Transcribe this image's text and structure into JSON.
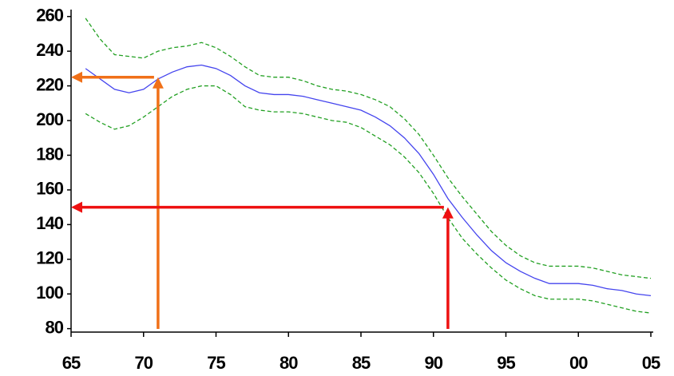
{
  "chart_data": {
    "type": "line",
    "x": [
      1966,
      1967,
      1968,
      1969,
      1970,
      1971,
      1972,
      1973,
      1974,
      1975,
      1976,
      1977,
      1978,
      1979,
      1980,
      1981,
      1982,
      1983,
      1984,
      1985,
      1986,
      1987,
      1988,
      1989,
      1990,
      1991,
      1992,
      1993,
      1994,
      1995,
      1996,
      1997,
      1998,
      1999,
      2000,
      2001,
      2002,
      2003,
      2004,
      2005
    ],
    "series": [
      {
        "color": "#4444ee",
        "dash": false,
        "values": [
          230,
          224,
          218,
          216,
          218,
          224,
          228,
          231,
          232,
          230,
          226,
          220,
          216,
          215,
          215,
          214,
          212,
          210,
          208,
          206,
          202,
          197,
          190,
          181,
          169,
          155,
          144,
          134,
          125,
          118,
          113,
          109,
          106,
          106,
          106,
          105,
          103,
          102,
          100,
          99
        ]
      },
      {
        "color": "#22a022",
        "dash": true,
        "values": [
          259,
          247,
          238,
          237,
          236,
          240,
          242,
          243,
          245,
          242,
          237,
          231,
          226,
          225,
          225,
          223,
          220,
          218,
          217,
          215,
          212,
          208,
          201,
          192,
          180,
          167,
          156,
          146,
          136,
          128,
          122,
          118,
          116,
          116,
          116,
          115,
          113,
          111,
          110,
          109
        ]
      },
      {
        "color": "#22a022",
        "dash": true,
        "values": [
          204,
          199,
          195,
          197,
          202,
          208,
          214,
          218,
          220,
          220,
          215,
          208,
          206,
          205,
          205,
          204,
          202,
          200,
          199,
          196,
          191,
          186,
          179,
          170,
          158,
          144,
          132,
          123,
          115,
          108,
          103,
          99,
          97,
          97,
          97,
          96,
          94,
          92,
          90,
          89
        ]
      }
    ],
    "xlim": [
      1965,
      2005
    ],
    "xticks": [
      {
        "value": 1965,
        "label": "65"
      },
      {
        "value": 1970,
        "label": "70"
      },
      {
        "value": 1975,
        "label": "75"
      },
      {
        "value": 1980,
        "label": "80"
      },
      {
        "value": 1985,
        "label": "85"
      },
      {
        "value": 1990,
        "label": "90"
      },
      {
        "value": 1995,
        "label": "95"
      },
      {
        "value": 2000,
        "label": "00"
      },
      {
        "value": 2005,
        "label": "05"
      }
    ],
    "ylim": [
      78,
      264
    ],
    "yticks": [
      80,
      100,
      120,
      140,
      160,
      180,
      200,
      220,
      240,
      260
    ],
    "annotations": [
      {
        "x": 1971,
        "y": 225,
        "color": "#f07018"
      },
      {
        "x": 1991,
        "y": 150,
        "color": "#ee1111"
      }
    ]
  }
}
